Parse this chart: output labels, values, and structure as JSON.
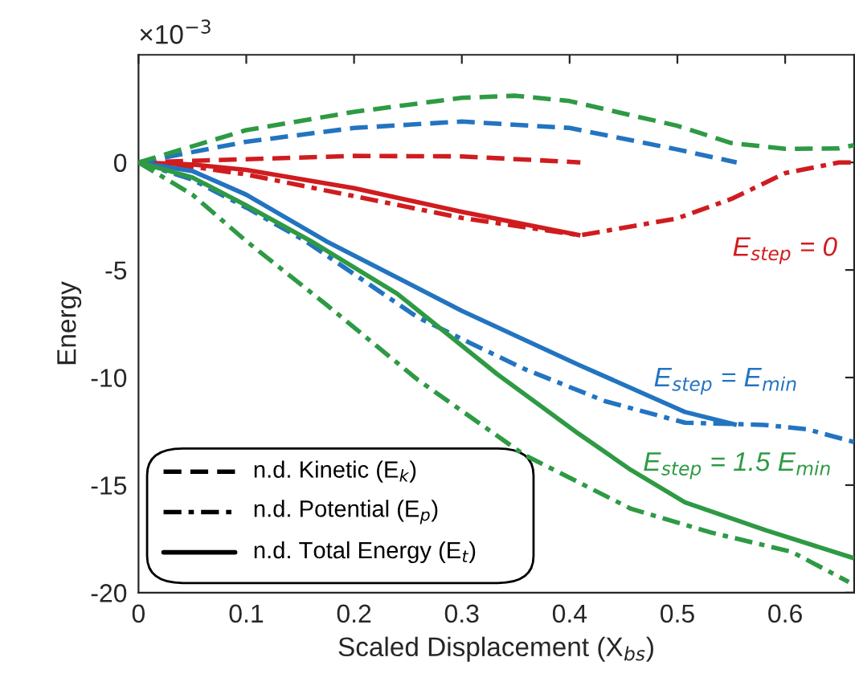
{
  "chart_data": {
    "type": "line",
    "xlabel": "Scaled Displacement (X$_{bs}$)",
    "ylabel": "Energy",
    "xlim": [
      0,
      0.664
    ],
    "ylim": [
      -20,
      5
    ],
    "xticks": [
      0,
      0.1,
      0.2,
      0.3,
      0.4,
      0.5,
      0.6
    ],
    "yticks": [
      -20,
      -15,
      -10,
      -5,
      0
    ],
    "grid": false,
    "series": [
      {
        "color": "#d01c1f",
        "line_style": "dashed",
        "x": [
          0,
          0.1,
          0.2,
          0.3,
          0.41
        ],
        "values": [
          0,
          0.15,
          0.3,
          0.28,
          0
        ]
      },
      {
        "color": "#d01c1f",
        "line_style": "dashdot",
        "x": [
          0,
          0.05,
          0.1,
          0.2,
          0.3,
          0.41,
          0.5,
          0.55,
          0.6,
          0.65,
          0.664
        ],
        "values": [
          0,
          -0.2,
          -0.56,
          -1.57,
          -2.58,
          -3.39,
          -2.6,
          -1.7,
          -0.5,
          0,
          0
        ]
      },
      {
        "color": "#d01c1f",
        "line_style": "solid",
        "x": [
          0,
          0.05,
          0.1,
          0.2,
          0.3,
          0.41
        ],
        "values": [
          0,
          -0.1,
          -0.35,
          -1.2,
          -2.3,
          -3.39
        ]
      },
      {
        "color": "#2374c0",
        "line_style": "dashed",
        "x": [
          0,
          0.1,
          0.2,
          0.3,
          0.4,
          0.5,
          0.555
        ],
        "values": [
          0,
          0.96,
          1.6,
          1.9,
          1.6,
          0.6,
          0
        ]
      },
      {
        "color": "#2374c0",
        "line_style": "dashdot",
        "x": [
          0,
          0.05,
          0.1,
          0.155,
          0.259,
          0.308,
          0.358,
          0.433,
          0.507,
          0.58,
          0.62,
          0.664
        ],
        "values": [
          0,
          -0.8,
          -2.1,
          -3.66,
          -7.2,
          -8.4,
          -9.6,
          -11.1,
          -12.1,
          -12.2,
          -12.4,
          -13.0
        ]
      },
      {
        "color": "#2374c0",
        "line_style": "solid",
        "x": [
          0,
          0.05,
          0.1,
          0.174,
          0.3,
          0.408,
          0.507,
          0.555
        ],
        "values": [
          0,
          -0.4,
          -1.5,
          -3.66,
          -6.9,
          -9.4,
          -11.6,
          -12.2
        ]
      },
      {
        "color": "#2e9a44",
        "line_style": "dashed",
        "x": [
          0,
          0.1,
          0.2,
          0.3,
          0.35,
          0.4,
          0.5,
          0.55,
          0.6,
          0.65,
          0.664
        ],
        "values": [
          0,
          1.5,
          2.35,
          3.0,
          3.1,
          2.85,
          1.7,
          0.9,
          0.63,
          0.65,
          0.8
        ]
      },
      {
        "color": "#2e9a44",
        "line_style": "dashdot",
        "x": [
          0,
          0.05,
          0.1,
          0.174,
          0.259,
          0.358,
          0.457,
          0.531,
          0.606,
          0.659
        ],
        "values": [
          0,
          -1.5,
          -3.66,
          -6.6,
          -10.1,
          -13.6,
          -16.1,
          -17.2,
          -18.1,
          -19.5
        ]
      },
      {
        "color": "#2e9a44",
        "line_style": "solid",
        "x": [
          0,
          0.05,
          0.1,
          0.16,
          0.24,
          0.333,
          0.408,
          0.457,
          0.507,
          0.582,
          0.664
        ],
        "values": [
          0,
          -0.7,
          -2.0,
          -3.66,
          -6.1,
          -9.85,
          -12.6,
          -14.3,
          -15.8,
          -17.1,
          -18.4
        ]
      }
    ],
    "annotations": [
      "×10$^{−3}$",
      "n.d. Kinetic (E$_{k}$)",
      "n.d. Potential (E$_{p}$)",
      "n.d. Total Energy (E$_{t}$)",
      "E$_{step}$ = 0",
      "E$_{step}$ = E$_{min}$",
      "E$_{step}$ = 1.5 E$_{min}$"
    ]
  }
}
